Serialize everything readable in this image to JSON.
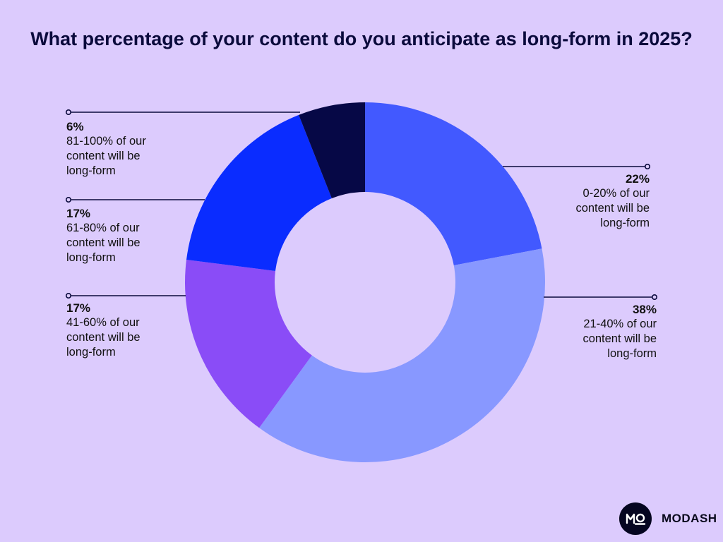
{
  "chart_data": {
    "type": "pie",
    "donut": true,
    "title": "What percentage of your content do you anticipate as long-form in 2025?",
    "slices": [
      {
        "value": 22,
        "pct_label": "22%",
        "label": "0-20% of our\ncontent will be\nlong-form",
        "color": "#4259ff"
      },
      {
        "value": 38,
        "pct_label": "38%",
        "label": "21-40% of our\ncontent will be\nlong-form",
        "color": "#8898ff"
      },
      {
        "value": 17,
        "pct_label": "17%",
        "label": "41-60% of our\ncontent will be\nlong-form",
        "color": "#8a4cf7"
      },
      {
        "value": 17,
        "pct_label": "17%",
        "label": "61-80% of our\ncontent will be\nlong-form",
        "color": "#0a2cff"
      },
      {
        "value": 6,
        "pct_label": "6%",
        "label": "81-100% of our\ncontent will be\nlong-form",
        "color": "#060846"
      }
    ],
    "legend": "callouts"
  },
  "brand": {
    "name": "MODASH",
    "logo_text": "MO"
  },
  "colors": {
    "background": "#dccbfd",
    "leader_line": "#0a0a3c"
  }
}
